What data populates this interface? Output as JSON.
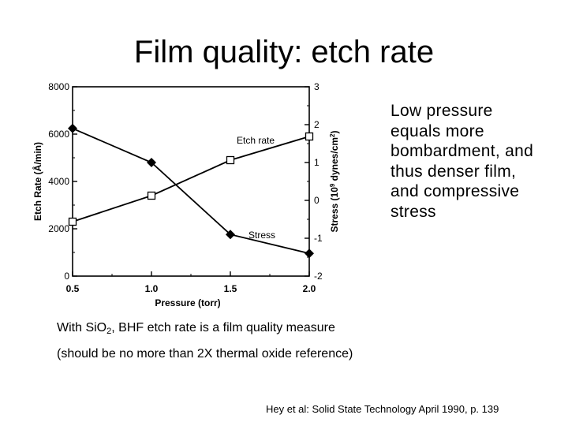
{
  "slide": {
    "title": "Film quality: etch rate",
    "side_text": [
      "Low pressure",
      "equals more",
      "bombardment, and",
      "thus denser film,",
      "and compressive",
      "stress"
    ],
    "note1_pre": "With Si",
    "note1_sub": "2",
    "note1_post": ", BHF etch rate is a film quality measure",
    "note2": "(should be no more than  2X thermal oxide reference)",
    "citation": "Hey et al: Solid State Technology April 1990, p. 139"
  },
  "chart_data": {
    "type": "line",
    "x": [
      0.5,
      1.0,
      1.5,
      2.0
    ],
    "x_ticks": [
      "0.5",
      "1.0",
      "1.5",
      "2.0"
    ],
    "xlabel": "Pressure (torr)",
    "xlim": [
      0.5,
      2.0
    ],
    "ylabel_left": "Etch Rate (Å/min)",
    "ylim_left": [
      0,
      8000
    ],
    "y_ticks_left": [
      "0",
      "2000",
      "4000",
      "6000",
      "8000"
    ],
    "ylabel_right_main": "Stress (10",
    "ylabel_right_sup": "9",
    "ylabel_right_mid": " dynes/cm",
    "ylabel_right_sup2": "2",
    "ylabel_right_end": ")",
    "ylim_right": [
      -2,
      3
    ],
    "y_ticks_right": [
      "-2",
      "-1",
      "0",
      "1",
      "2",
      "3"
    ],
    "grid": false,
    "series": [
      {
        "name": "Etch rate",
        "axis": "left",
        "marker": "square",
        "values": [
          2300,
          3400,
          4900,
          5900
        ]
      },
      {
        "name": "Stress",
        "axis": "right",
        "marker": "diamond",
        "values": [
          1.9,
          1.0,
          -0.9,
          -1.4
        ]
      }
    ]
  }
}
